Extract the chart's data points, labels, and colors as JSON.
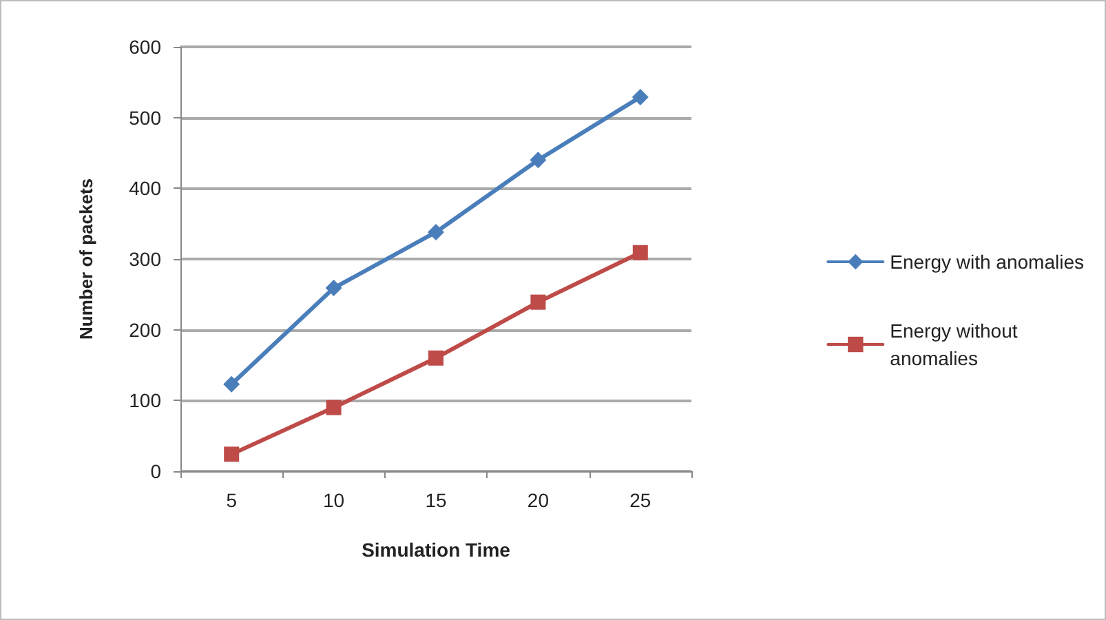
{
  "chart_data": {
    "type": "line",
    "xlabel": "Simulation Time",
    "ylabel": "Number of packets",
    "categories": [
      "5",
      "10",
      "15",
      "20",
      "25"
    ],
    "series": [
      {
        "name": "Energy with anomalies",
        "color": "#4a7ebb",
        "marker": "diamond",
        "values": [
          123,
          259,
          338,
          440,
          529
        ]
      },
      {
        "name": "Energy without\nanomalies",
        "color": "#be4b48",
        "marker": "square",
        "values": [
          24,
          90,
          160,
          239,
          309
        ]
      }
    ],
    "ylim": [
      0,
      600
    ],
    "yticks": [
      0,
      100,
      200,
      300,
      400,
      500,
      600
    ],
    "grid": "y",
    "legend": "right",
    "line_style": "solid"
  }
}
